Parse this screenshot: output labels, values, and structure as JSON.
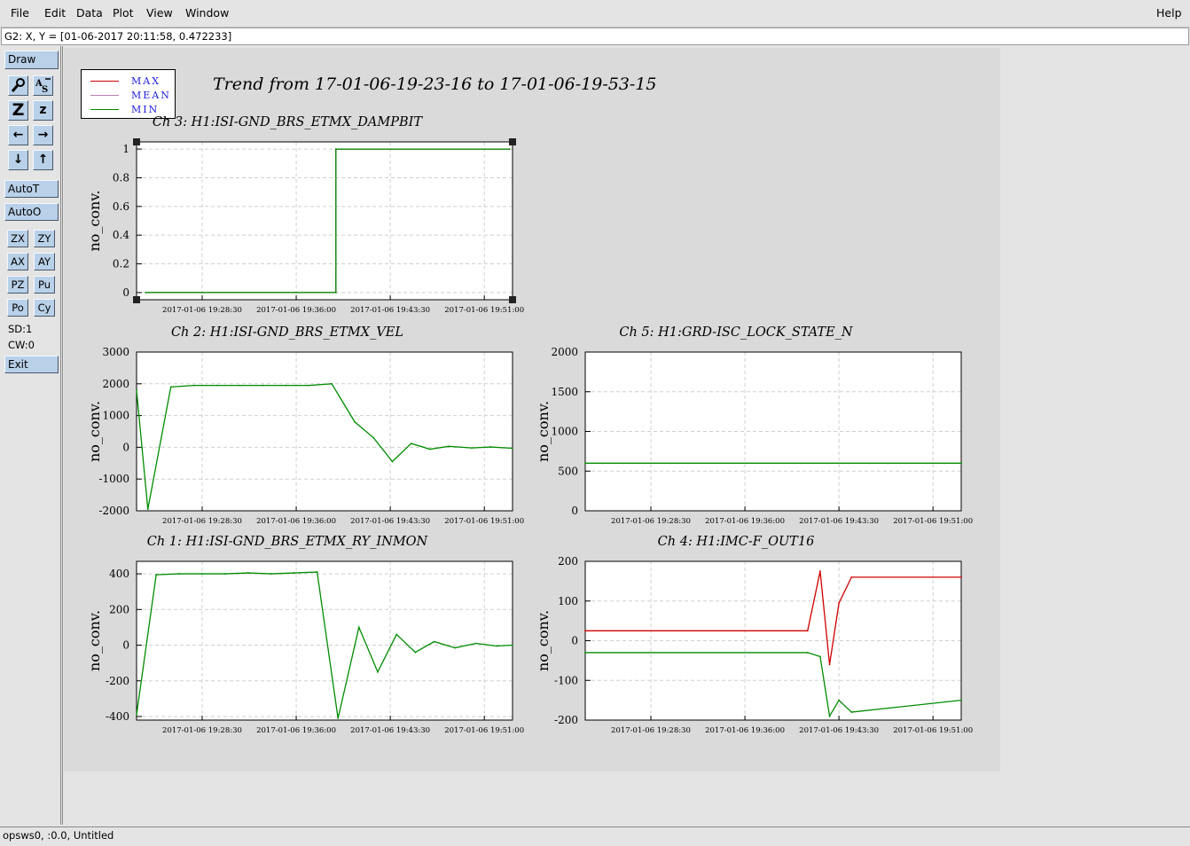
{
  "menu": {
    "file": "File",
    "edit": "Edit",
    "data": "Data",
    "plot": "Plot",
    "view": "View",
    "window": "Window",
    "help": "Help"
  },
  "coord_readout": "G2: X, Y = [01-06-2017 20:11:58, 0.472233]",
  "toolbar": {
    "draw": "Draw",
    "autot": "AutoT",
    "autoo": "AutoO",
    "zx": "ZX",
    "zy": "ZY",
    "ax": "AX",
    "ay": "AY",
    "pz": "PZ",
    "pu": "Pu",
    "po": "Po",
    "cy": "Cy",
    "sd": "SD:1",
    "cw": "CW:0",
    "exit": "Exit",
    "icon_names": [
      "magnifier-icon",
      "autoscale-icon",
      "zoom-out-icon",
      "zoom-in-icon",
      "left-arrow-icon",
      "right-arrow-icon",
      "down-arrow-icon",
      "up-arrow-icon"
    ]
  },
  "legend": [
    {
      "label": "MAX",
      "color": "#d00000"
    },
    {
      "label": "MEAN",
      "color": "#b080b0"
    },
    {
      "label": "MIN",
      "color": "#008c00"
    }
  ],
  "main_title": "Trend from 17-01-06-19-23-16 to 17-01-06-19-53-15",
  "status_bar": "opsws0, :0.0, Untitled",
  "chart_data": [
    {
      "id": "ch3",
      "type": "line",
      "title": "Ch 3: H1:ISI-GND_BRS_ETMX_DAMPBIT",
      "ylabel": "no_conv.",
      "xticks": [
        "2017-01-06 19:28:30",
        "2017-01-06 19:36:00",
        "2017-01-06 19:43:30",
        "2017-01-06 19:51:00"
      ],
      "yticks": [
        "0",
        "0.2",
        "0.4",
        "0.6",
        "0.8",
        "1"
      ],
      "ylim": [
        -0.05,
        1.05
      ],
      "grid": true,
      "series": [
        {
          "name": "MAX",
          "color": "#d00000",
          "x": [
            "19:24:00",
            "19:39:10",
            "19:39:10",
            "19:53:00"
          ],
          "y": [
            0,
            0,
            1,
            1
          ]
        },
        {
          "name": "MEAN",
          "color": "#b080b0",
          "x": [
            "19:24:00",
            "19:39:10",
            "19:39:10",
            "19:53:00"
          ],
          "y": [
            0,
            0,
            1,
            1
          ]
        },
        {
          "name": "MIN",
          "color": "#008c00",
          "x": [
            "19:24:00",
            "19:39:10",
            "19:39:10",
            "19:53:00"
          ],
          "y": [
            0,
            0,
            1,
            1
          ]
        }
      ]
    },
    {
      "id": "ch2",
      "type": "line",
      "title": "Ch 2: H1:ISI-GND_BRS_ETMX_VEL",
      "ylabel": "no_conv.",
      "xticks": [
        "2017-01-06 19:28:30",
        "2017-01-06 19:36:00",
        "2017-01-06 19:43:30",
        "2017-01-06 19:51:00"
      ],
      "yticks": [
        "-2000",
        "-1000",
        "0",
        "1000",
        "2000",
        "3000"
      ],
      "ylim": [
        -2000,
        3000
      ],
      "grid": true,
      "series": [
        {
          "name": "MIN",
          "color": "#008c00",
          "x": [
            "19:23:16",
            "19:24:10",
            "19:26:00",
            "19:27:50",
            "19:29:40",
            "19:31:30",
            "19:33:20",
            "19:35:10",
            "19:37:00",
            "19:38:50",
            "19:40:40",
            "19:42:10",
            "19:43:40",
            "19:45:10",
            "19:46:40",
            "19:48:10",
            "19:50:00",
            "19:51:30",
            "19:53:15"
          ],
          "y": [
            1800,
            -1950,
            1900,
            1950,
            1950,
            1950,
            1950,
            1950,
            1950,
            2000,
            800,
            300,
            -450,
            120,
            -60,
            30,
            -20,
            10,
            -30
          ]
        }
      ]
    },
    {
      "id": "ch5",
      "type": "line",
      "title": "Ch 5: H1:GRD-ISC_LOCK_STATE_N",
      "ylabel": "no_conv.",
      "xticks": [
        "2017-01-06 19:28:30",
        "2017-01-06 19:36:00",
        "2017-01-06 19:43:30",
        "2017-01-06 19:51:00"
      ],
      "yticks": [
        "0",
        "500",
        "1000",
        "1500",
        "2000"
      ],
      "ylim": [
        0,
        2000
      ],
      "grid": true,
      "series": [
        {
          "name": "MIN",
          "color": "#008c00",
          "x": [
            "19:23:16",
            "19:53:15"
          ],
          "y": [
            600,
            600
          ]
        }
      ]
    },
    {
      "id": "ch1",
      "type": "line",
      "title": "Ch 1: H1:ISI-GND_BRS_ETMX_RY_INMON",
      "ylabel": "no_conv.",
      "xticks": [
        "2017-01-06 19:28:30",
        "2017-01-06 19:36:00",
        "2017-01-06 19:43:30",
        "2017-01-06 19:51:00"
      ],
      "yticks": [
        "-400",
        "-200",
        "0",
        "200",
        "400"
      ],
      "ylim": [
        -420,
        470
      ],
      "grid": true,
      "series": [
        {
          "name": "MIN",
          "color": "#008c00",
          "x": [
            "19:23:16",
            "19:24:50",
            "19:26:40",
            "19:28:30",
            "19:30:20",
            "19:32:10",
            "19:34:00",
            "19:35:50",
            "19:37:40",
            "19:39:20",
            "19:41:00",
            "19:42:30",
            "19:44:00",
            "19:45:30",
            "19:47:00",
            "19:48:40",
            "19:50:20",
            "19:52:00",
            "19:53:15"
          ],
          "y": [
            -390,
            395,
            400,
            400,
            400,
            405,
            400,
            405,
            410,
            -410,
            100,
            -150,
            60,
            -40,
            20,
            -15,
            10,
            -5,
            0
          ]
        }
      ]
    },
    {
      "id": "ch4",
      "type": "line",
      "title": "Ch 4: H1:IMC-F_OUT16",
      "ylabel": "no_conv.",
      "xticks": [
        "2017-01-06 19:28:30",
        "2017-01-06 19:36:00",
        "2017-01-06 19:43:30",
        "2017-01-06 19:51:00"
      ],
      "yticks": [
        "-200",
        "-100",
        "0",
        "100",
        "200"
      ],
      "ylim": [
        -200,
        200
      ],
      "grid": true,
      "series": [
        {
          "name": "MAX",
          "color": "#d00000",
          "x": [
            "19:23:16",
            "19:41:00",
            "19:42:00",
            "19:42:45",
            "19:43:30",
            "19:44:30",
            "19:53:15"
          ],
          "y": [
            25,
            25,
            175,
            -60,
            95,
            160,
            160
          ]
        },
        {
          "name": "MIN",
          "color": "#008c00",
          "x": [
            "19:23:16",
            "19:41:00",
            "19:42:00",
            "19:42:45",
            "19:43:30",
            "19:44:30",
            "19:53:15"
          ],
          "y": [
            -30,
            -30,
            -40,
            -190,
            -150,
            -180,
            -150
          ]
        }
      ]
    }
  ]
}
